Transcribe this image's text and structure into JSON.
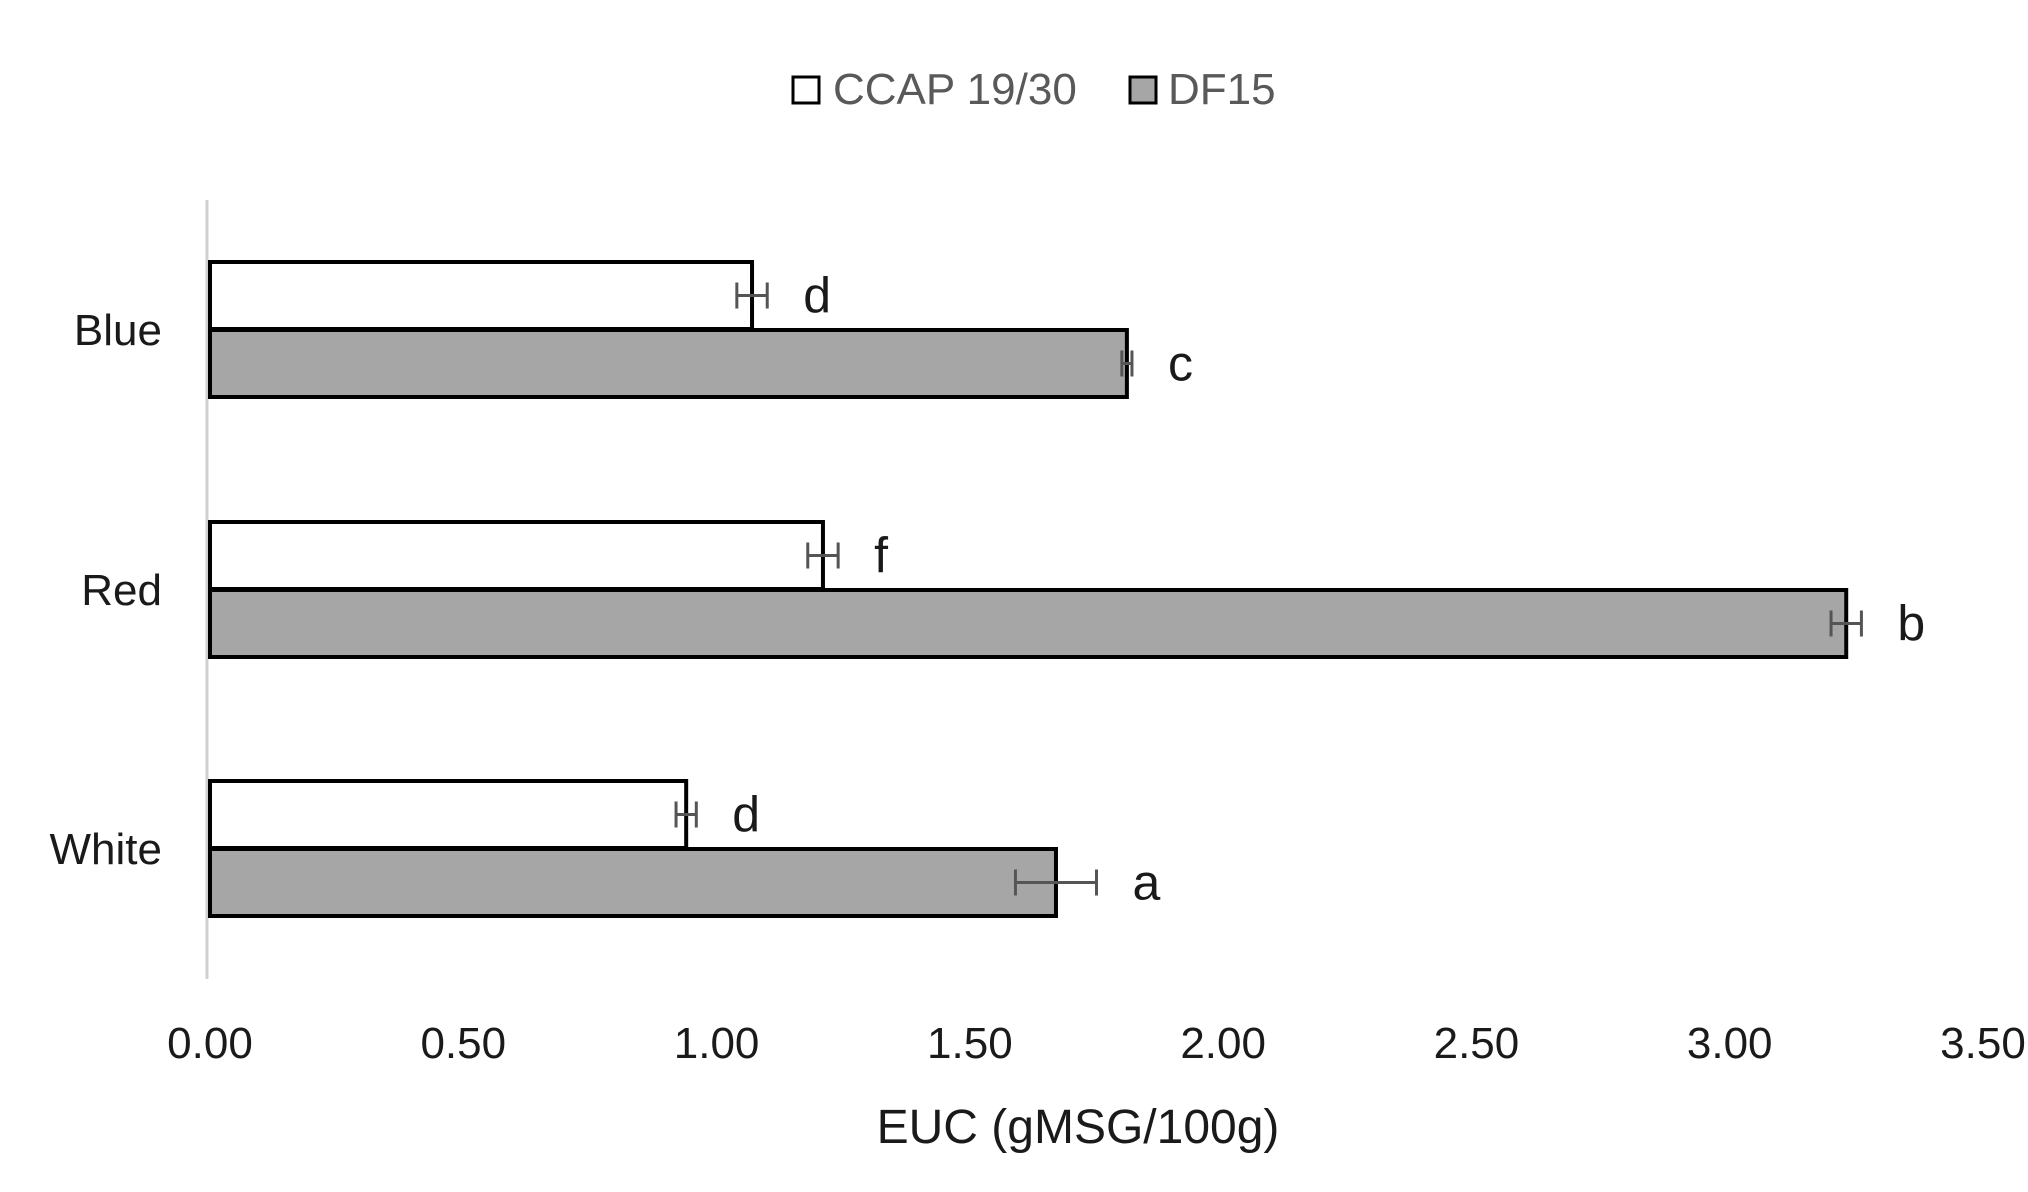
{
  "chart_data": {
    "type": "bar",
    "orientation": "horizontal",
    "title": "",
    "xlabel": "EUC (gMSG/100g)",
    "ylabel": "",
    "xlim": [
      0,
      3.5
    ],
    "x_ticks": [
      "0.00",
      "0.50",
      "1.00",
      "1.50",
      "2.00",
      "2.50",
      "3.00",
      "3.50"
    ],
    "grid": false,
    "legend": {
      "position": "top-center",
      "entries": [
        "CCAP 19/30",
        "DF15"
      ]
    },
    "categories": [
      "Blue",
      "Red",
      "White"
    ],
    "series": [
      {
        "name": "CCAP 19/30",
        "fill": "#ffffff",
        "stroke": "#000000",
        "values": [
          1.07,
          1.21,
          0.94
        ],
        "errors": [
          0.03,
          0.03,
          0.02
        ],
        "labels": [
          "d",
          "f",
          "d"
        ]
      },
      {
        "name": "DF15",
        "fill": "#a6a6a6",
        "stroke": "#000000",
        "values": [
          1.81,
          3.23,
          1.67
        ],
        "errors": [
          0.01,
          0.03,
          0.08
        ],
        "labels": [
          "c",
          "b",
          "a"
        ]
      }
    ],
    "colors": {
      "axis": "#d0d0d0",
      "error_bar": "#555555",
      "text": "#1a1a1a",
      "legend_text": "#595959"
    }
  }
}
